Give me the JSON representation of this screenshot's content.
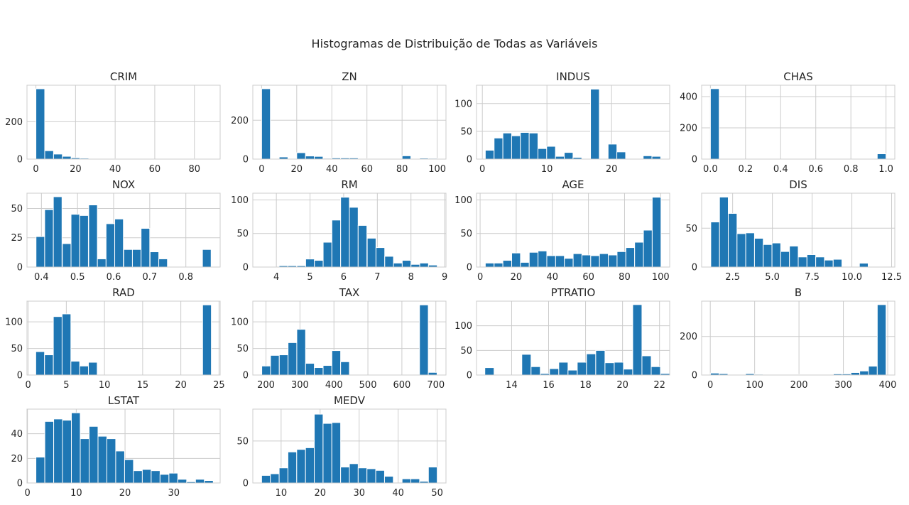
{
  "figure": {
    "title": "Histogramas de Distribuição de Todas as Variáveis"
  },
  "colors": {
    "bar": "#1f77b4",
    "bar_edge": "#ffffff",
    "grid": "#cccccc",
    "spine": "#cccccc",
    "text": "#262626"
  },
  "chart_data": [
    {
      "type": "bar",
      "title": "CRIM",
      "grid": true,
      "x": [
        2.23,
        6.68,
        11.13,
        15.58,
        20.03,
        24.48,
        28.93,
        33.38,
        37.83,
        42.28,
        46.73,
        51.18,
        55.63,
        60.08,
        64.53,
        68.98,
        73.43,
        77.88,
        82.33,
        86.78
      ],
      "values": [
        376,
        45,
        27,
        15,
        7,
        5,
        3,
        2,
        1,
        1,
        1,
        0,
        0,
        0,
        0,
        0,
        1,
        1,
        0,
        1
      ],
      "xlim": [
        -4.5,
        93
      ],
      "ylim": [
        0,
        395
      ],
      "xticks": [
        0,
        20,
        40,
        60,
        80
      ],
      "yticks": [
        0,
        200
      ]
    },
    {
      "type": "bar",
      "title": "ZN",
      "grid": true,
      "x": [
        2.5,
        7.5,
        12.5,
        17.5,
        22.5,
        27.5,
        32.5,
        37.5,
        42.5,
        47.5,
        52.5,
        57.5,
        62.5,
        67.5,
        72.5,
        77.5,
        82.5,
        87.5,
        92.5,
        97.5
      ],
      "values": [
        362,
        0,
        11,
        2,
        33,
        16,
        14,
        4,
        6,
        6,
        6,
        0,
        3,
        0,
        3,
        3,
        17,
        2,
        5,
        4
      ],
      "xlim": [
        -5,
        105
      ],
      "ylim": [
        0,
        380
      ],
      "xticks": [
        0,
        20,
        40,
        60,
        80,
        100
      ],
      "yticks": [
        0,
        200
      ]
    },
    {
      "type": "bar",
      "title": "INDUS",
      "grid": true,
      "x": [
        1.14,
        2.5,
        3.86,
        5.21,
        6.57,
        7.93,
        9.29,
        10.64,
        12.0,
        13.36,
        14.72,
        16.07,
        17.43,
        18.79,
        20.15,
        21.5,
        22.86,
        24.22,
        25.58,
        26.93
      ],
      "values": [
        16,
        38,
        47,
        42,
        48,
        47,
        19,
        23,
        5,
        12,
        3,
        0,
        126,
        0,
        27,
        13,
        0,
        0,
        6,
        5
      ],
      "xlim": [
        -0.9,
        29.0
      ],
      "ylim": [
        0,
        133
      ],
      "xticks": [
        0,
        10,
        20
      ],
      "yticks": [
        0,
        50,
        100
      ]
    },
    {
      "type": "bar",
      "title": "CHAS",
      "grid": true,
      "x": [
        0.025,
        0.075,
        0.125,
        0.175,
        0.225,
        0.275,
        0.325,
        0.375,
        0.425,
        0.475,
        0.525,
        0.575,
        0.625,
        0.675,
        0.725,
        0.775,
        0.825,
        0.875,
        0.925,
        0.975
      ],
      "values": [
        451,
        0,
        0,
        0,
        0,
        0,
        0,
        0,
        0,
        0,
        0,
        0,
        0,
        0,
        0,
        0,
        0,
        0,
        0,
        34
      ],
      "xlim": [
        -0.05,
        1.05
      ],
      "ylim": [
        0,
        473
      ],
      "xticks": [
        0.0,
        0.2,
        0.4,
        0.6,
        0.8,
        1.0
      ],
      "yticks": [
        0,
        200,
        400
      ]
    },
    {
      "type": "bar",
      "title": "NOX",
      "grid": true,
      "x": [
        0.397,
        0.421,
        0.445,
        0.47,
        0.494,
        0.518,
        0.543,
        0.567,
        0.591,
        0.615,
        0.64,
        0.664,
        0.688,
        0.713,
        0.737,
        0.761,
        0.786,
        0.81,
        0.834,
        0.858
      ],
      "values": [
        26,
        49,
        60,
        20,
        45,
        44,
        53,
        7,
        37,
        41,
        15,
        15,
        33,
        13,
        7,
        0,
        0,
        0,
        0,
        15
      ],
      "xlim": [
        0.36,
        0.895
      ],
      "ylim": [
        0,
        63
      ],
      "xticks": [
        0.4,
        0.5,
        0.6,
        0.7,
        0.8
      ],
      "yticks": [
        0,
        25,
        50
      ]
    },
    {
      "type": "bar",
      "title": "RM",
      "grid": true,
      "x": [
        3.69,
        3.95,
        4.21,
        4.47,
        4.74,
        5.0,
        5.26,
        5.52,
        5.78,
        6.04,
        6.3,
        6.56,
        6.83,
        7.09,
        7.35,
        7.61,
        7.87,
        8.13,
        8.39,
        8.65
      ],
      "values": [
        0,
        0,
        2,
        2,
        2,
        12,
        10,
        37,
        70,
        104,
        89,
        62,
        43,
        29,
        16,
        6,
        10,
        4,
        6,
        3
      ],
      "xlim": [
        3.3,
        9.04
      ],
      "ylim": [
        0,
        110
      ],
      "xticks": [
        4,
        5,
        6,
        7,
        8,
        9
      ],
      "yticks": [
        0,
        50,
        100
      ]
    },
    {
      "type": "bar",
      "title": "AGE",
      "grid": true,
      "x": [
        5.31,
        10.18,
        15.04,
        19.91,
        24.77,
        29.64,
        34.51,
        39.37,
        44.24,
        49.1,
        53.97,
        58.83,
        63.7,
        68.56,
        73.43,
        78.29,
        83.16,
        88.03,
        92.89,
        97.76
      ],
      "values": [
        6,
        6,
        10,
        21,
        7,
        22,
        24,
        17,
        17,
        13,
        20,
        18,
        17,
        20,
        18,
        23,
        29,
        37,
        55,
        104
      ],
      "xlim": [
        -2.0,
        105.0
      ],
      "ylim": [
        0,
        110
      ],
      "xticks": [
        0,
        20,
        40,
        60,
        80,
        100
      ],
      "yticks": [
        0,
        50,
        100
      ]
    },
    {
      "type": "bar",
      "title": "DIS",
      "grid": true,
      "x": [
        1.4,
        1.95,
        2.5,
        3.05,
        3.6,
        4.15,
        4.7,
        5.25,
        5.8,
        6.35,
        6.9,
        7.45,
        8.0,
        8.55,
        9.1,
        9.65,
        10.2,
        10.75,
        11.3,
        11.85
      ],
      "values": [
        58,
        90,
        69,
        43,
        44,
        37,
        29,
        31,
        20,
        27,
        13,
        16,
        13,
        9,
        10,
        0,
        0,
        5,
        0,
        0
      ],
      "xlim": [
        0.55,
        12.7
      ],
      "ylim": [
        0,
        95
      ],
      "xticks": [
        2.5,
        5.0,
        7.5,
        10.0,
        12.5
      ],
      "yticks": [
        0,
        50
      ]
    },
    {
      "type": "bar",
      "title": "RAD",
      "grid": true,
      "x": [
        1.575,
        2.725,
        3.875,
        5.025,
        6.175,
        7.325,
        8.475,
        9.625,
        10.775,
        11.925,
        13.075,
        14.225,
        15.375,
        16.525,
        17.675,
        18.825,
        19.975,
        21.125,
        22.275,
        23.425
      ],
      "values": [
        44,
        38,
        110,
        115,
        26,
        17,
        24,
        0,
        0,
        0,
        0,
        0,
        0,
        0,
        0,
        0,
        0,
        0,
        0,
        132
      ],
      "xlim": [
        -0.15,
        25.15
      ],
      "ylim": [
        0,
        139
      ],
      "xticks": [
        0,
        5,
        10,
        15,
        20,
        25
      ],
      "yticks": [
        0,
        50,
        100
      ]
    },
    {
      "type": "bar",
      "title": "TAX",
      "grid": true,
      "x": [
        200.4,
        226.2,
        252.0,
        277.8,
        303.6,
        329.4,
        355.2,
        381.0,
        406.8,
        432.6,
        458.4,
        484.2,
        510.0,
        535.8,
        561.6,
        587.4,
        613.2,
        639.0,
        664.8,
        690.6
      ],
      "values": [
        17,
        37,
        38,
        61,
        86,
        22,
        14,
        18,
        46,
        25,
        0,
        0,
        0,
        0,
        0,
        0,
        0,
        0,
        132,
        5
      ],
      "xlim": [
        161.2,
        729.8
      ],
      "ylim": [
        0,
        139
      ],
      "xticks": [
        200,
        300,
        400,
        500,
        600,
        700
      ],
      "yticks": [
        0,
        50,
        100
      ]
    },
    {
      "type": "bar",
      "title": "PTRATIO",
      "grid": true,
      "x": [
        12.8,
        13.3,
        13.8,
        14.3,
        14.8,
        15.3,
        15.8,
        16.3,
        16.8,
        17.3,
        17.8,
        18.3,
        18.8,
        19.3,
        19.8,
        20.3,
        20.8,
        21.3,
        21.8,
        22.3
      ],
      "values": [
        15,
        0,
        0,
        0,
        42,
        17,
        3,
        13,
        26,
        10,
        26,
        43,
        50,
        25,
        26,
        12,
        143,
        39,
        17,
        3
      ],
      "xlim": [
        12.1,
        22.55
      ],
      "ylim": [
        0,
        150
      ],
      "xticks": [
        14,
        16,
        18,
        20,
        22
      ],
      "yticks": [
        0,
        50,
        100
      ]
    },
    {
      "type": "bar",
      "title": "B",
      "grid": true,
      "x": [
        10.2,
        30.0,
        49.8,
        69.6,
        89.4,
        109.2,
        129.0,
        148.8,
        168.6,
        188.4,
        208.2,
        228.0,
        247.8,
        267.6,
        287.4,
        307.2,
        327.0,
        346.8,
        366.6,
        386.4
      ],
      "values": [
        10,
        7,
        3,
        3,
        7,
        4,
        2,
        2,
        2,
        2,
        3,
        2,
        2,
        2,
        6,
        6,
        13,
        21,
        46,
        365
      ],
      "xlim": [
        -19.5,
        416.0
      ],
      "ylim": [
        0,
        383
      ],
      "xticks": [
        0,
        100,
        200,
        300,
        400
      ],
      "yticks": [
        0,
        200
      ]
    },
    {
      "type": "bar",
      "title": "LSTAT",
      "grid": true,
      "x": [
        2.64,
        4.46,
        6.28,
        8.09,
        9.91,
        11.73,
        13.55,
        15.37,
        17.18,
        19.0,
        20.82,
        22.64,
        24.45,
        26.27,
        28.09,
        29.91,
        31.73,
        33.54,
        35.36,
        37.18
      ],
      "values": [
        21,
        50,
        52,
        51,
        57,
        36,
        46,
        38,
        36,
        26,
        19,
        10,
        11,
        10,
        7,
        8,
        3,
        1,
        3,
        2
      ],
      "xlim": [
        -0.1,
        39.5
      ],
      "ylim": [
        0,
        60
      ],
      "xticks": [
        0,
        10,
        20,
        30
      ],
      "yticks": [
        0,
        20,
        40
      ]
    },
    {
      "type": "bar",
      "title": "MEDV",
      "grid": true,
      "x": [
        6.125,
        8.375,
        10.625,
        12.875,
        15.125,
        17.375,
        19.625,
        21.875,
        24.125,
        26.375,
        28.625,
        30.875,
        33.125,
        35.375,
        37.625,
        39.875,
        42.125,
        44.375,
        46.625,
        48.875
      ],
      "values": [
        9,
        11,
        18,
        37,
        40,
        42,
        82,
        71,
        72,
        19,
        23,
        18,
        17,
        15,
        8,
        0,
        5,
        5,
        2,
        19
      ],
      "xlim": [
        2.75,
        52.25
      ],
      "ylim": [
        0,
        88
      ],
      "xticks": [
        10,
        20,
        30,
        40,
        50
      ],
      "yticks": [
        0,
        50
      ]
    }
  ]
}
